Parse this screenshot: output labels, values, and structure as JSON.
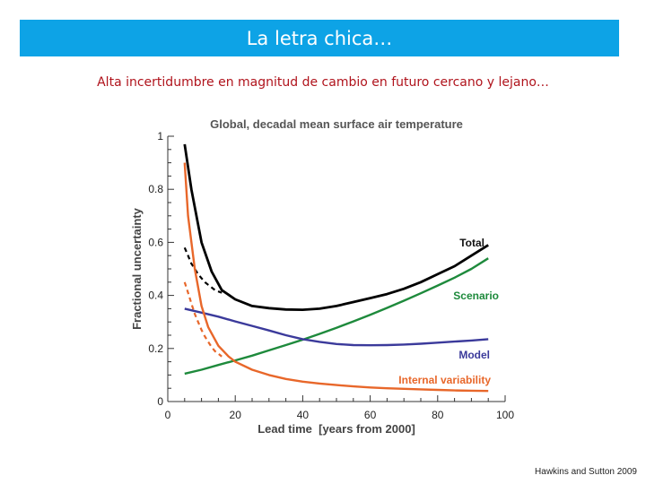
{
  "slide": {
    "title": "La letra chica…",
    "subtitle": "Alta incertidumbre en magnitud de cambio en futuro cercano y lejano…",
    "citation": "Hawkins and Sutton 2009"
  },
  "chart_data": {
    "type": "line",
    "title": "Global, decadal mean surface air temperature",
    "xlabel": "Lead time  [years from 2000]",
    "ylabel": "Fractional uncertainty",
    "xlim": [
      0,
      100
    ],
    "ylim": [
      0,
      1
    ],
    "x_ticks": [
      "0",
      "20",
      "40",
      "60",
      "80",
      "100"
    ],
    "y_ticks": [
      "0",
      "0.2",
      "0.4",
      "0.6",
      "0.8",
      "1"
    ],
    "grid": false,
    "series": [
      {
        "name": "Total",
        "color": "#000000",
        "x": [
          5,
          7,
          10,
          13,
          16,
          20,
          25,
          30,
          35,
          40,
          45,
          50,
          55,
          60,
          65,
          70,
          75,
          80,
          85,
          90,
          95
        ],
        "values": [
          0.97,
          0.8,
          0.6,
          0.49,
          0.42,
          0.385,
          0.36,
          0.352,
          0.347,
          0.346,
          0.35,
          0.36,
          0.375,
          0.39,
          0.405,
          0.425,
          0.45,
          0.48,
          0.51,
          0.55,
          0.59
        ]
      },
      {
        "name": "Scenario",
        "color": "#1e8a3c",
        "x": [
          5,
          10,
          15,
          20,
          25,
          30,
          35,
          40,
          45,
          50,
          55,
          60,
          65,
          70,
          75,
          80,
          85,
          90,
          95
        ],
        "values": [
          0.105,
          0.12,
          0.138,
          0.155,
          0.173,
          0.193,
          0.213,
          0.233,
          0.255,
          0.278,
          0.302,
          0.327,
          0.353,
          0.38,
          0.408,
          0.437,
          0.467,
          0.5,
          0.54
        ]
      },
      {
        "name": "Model",
        "color": "#3b3a9b",
        "x": [
          5,
          10,
          15,
          20,
          25,
          30,
          35,
          40,
          45,
          50,
          55,
          60,
          65,
          70,
          75,
          80,
          85,
          90,
          95
        ],
        "values": [
          0.35,
          0.335,
          0.32,
          0.302,
          0.285,
          0.268,
          0.25,
          0.235,
          0.225,
          0.217,
          0.213,
          0.212,
          0.213,
          0.215,
          0.218,
          0.222,
          0.226,
          0.23,
          0.235
        ]
      },
      {
        "name": "Internal variability",
        "color": "#e8672a",
        "x": [
          5,
          6,
          8,
          10,
          12,
          15,
          18,
          20,
          25,
          30,
          35,
          40,
          45,
          50,
          55,
          60,
          65,
          70,
          75,
          80,
          85,
          90,
          95
        ],
        "values": [
          0.9,
          0.7,
          0.5,
          0.36,
          0.28,
          0.21,
          0.17,
          0.15,
          0.12,
          0.1,
          0.085,
          0.075,
          0.068,
          0.062,
          0.057,
          0.053,
          0.05,
          0.048,
          0.046,
          0.044,
          0.042,
          0.041,
          0.04
        ]
      }
    ],
    "dashed_series": [
      {
        "color": "#000000",
        "x": [
          5,
          6,
          7,
          8,
          9,
          10,
          11,
          12,
          13,
          14,
          15,
          16
        ],
        "values": [
          0.58,
          0.55,
          0.52,
          0.5,
          0.48,
          0.465,
          0.45,
          0.44,
          0.43,
          0.42,
          0.415,
          0.41
        ]
      },
      {
        "color": "#e8672a",
        "x": [
          5,
          6,
          7,
          8,
          9,
          10,
          11,
          12,
          13,
          14,
          15,
          16
        ],
        "values": [
          0.45,
          0.41,
          0.37,
          0.33,
          0.3,
          0.27,
          0.245,
          0.225,
          0.205,
          0.19,
          0.18,
          0.17
        ]
      }
    ]
  }
}
